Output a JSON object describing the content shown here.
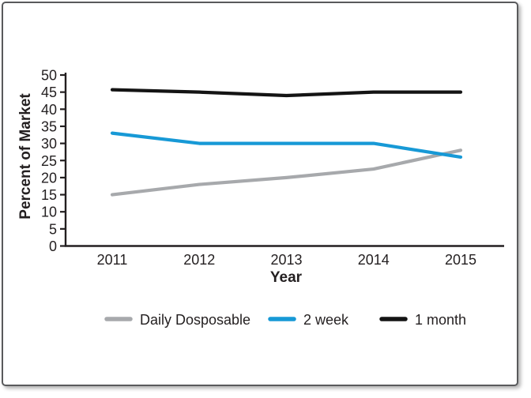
{
  "chart_data": {
    "type": "line",
    "xlabel": "Year",
    "ylabel": "Percent of Market",
    "categories": [
      "2011",
      "2012",
      "2013",
      "2014",
      "2015"
    ],
    "series": [
      {
        "name": "Daily Dosposable",
        "color": "#a7a9ac",
        "values": [
          15,
          18,
          20,
          22.5,
          28
        ]
      },
      {
        "name": "2 week",
        "color": "#1799d6",
        "values": [
          33,
          30,
          30,
          30,
          26
        ]
      },
      {
        "name": "1 month",
        "color": "#141414",
        "values": [
          45.7,
          45,
          44,
          45,
          45
        ]
      }
    ],
    "ylim": [
      0,
      50
    ],
    "ytick_step": 5,
    "grid": false,
    "legend_position": "bottom",
    "axis_color": "#231f20",
    "text_color": "#231f20"
  }
}
